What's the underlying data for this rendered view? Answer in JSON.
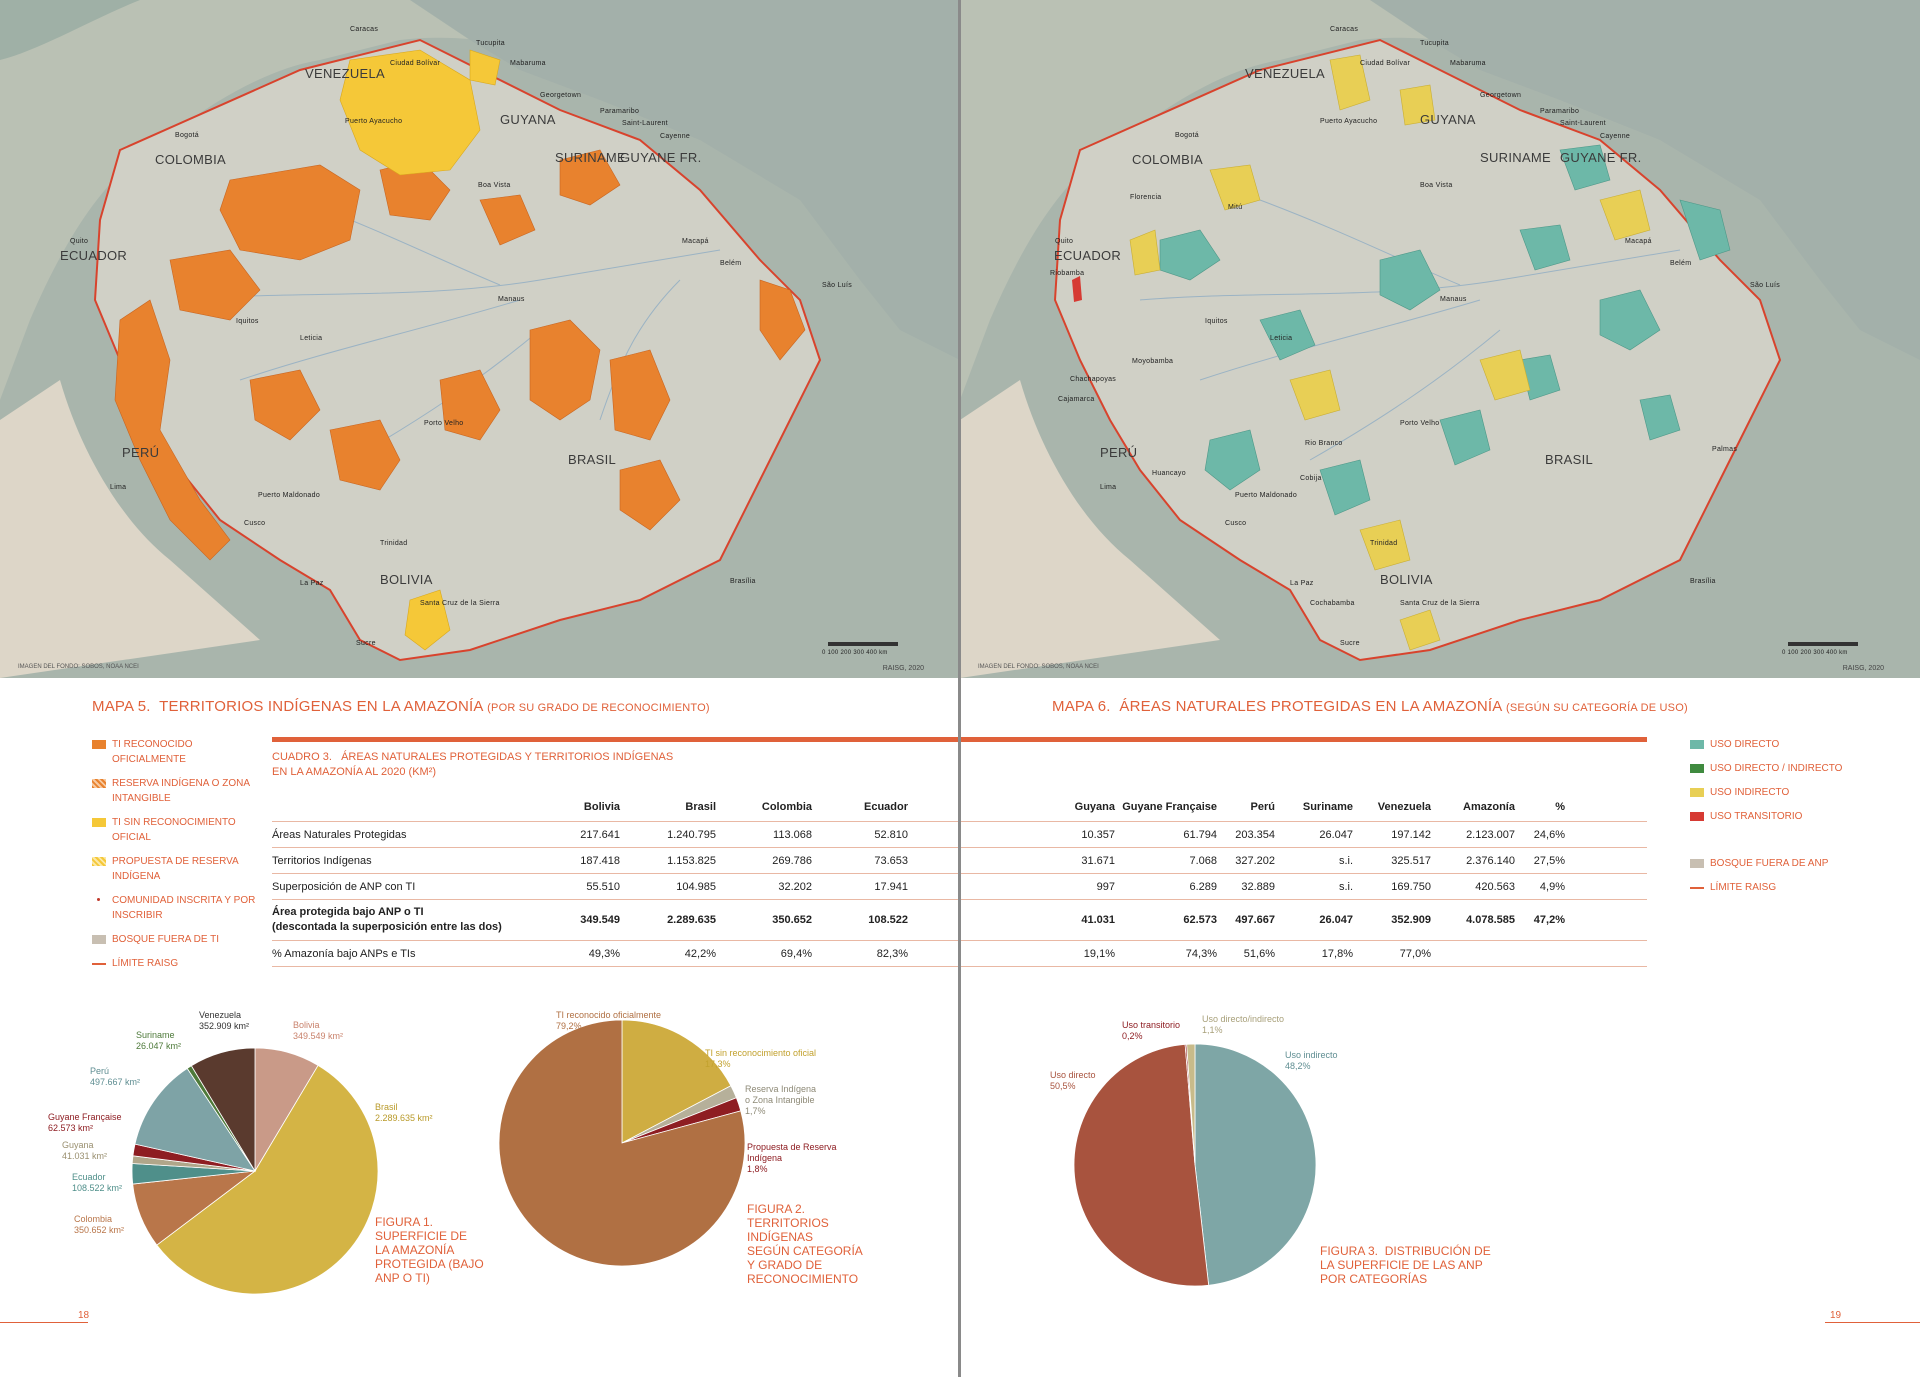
{
  "left_page": {
    "map": {
      "credit": "IMAGEN DEL FONDO: SOBOS, NOAA NCEI",
      "raisg_credit": "RAISG, 2020",
      "scale": "0  100  200  300  400 km",
      "countries": [
        "VENEZUELA",
        "COLOMBIA",
        "GUYANA",
        "SURINAME",
        "GUYANE FR.",
        "ECUADOR",
        "PERÚ",
        "BRASIL",
        "BOLIVIA"
      ],
      "cities": [
        "Caracas",
        "Ciudad Bolívar",
        "Tucupita",
        "Mabaruma",
        "Georgetown",
        "Paramaribo",
        "Saint-Laurent",
        "Cayenne",
        "Bogotá",
        "Puerto Ayacucho",
        "Boa Vista",
        "Macapá",
        "Belém",
        "São Luís",
        "Manaus",
        "Quito",
        "Iquitos",
        "Leticia",
        "Porto Velho",
        "Lima",
        "Puerto Maldonado",
        "Cusco",
        "Trinidad",
        "La Paz",
        "Santa Cruz de la Sierra",
        "Sucre",
        "Brasília"
      ]
    },
    "title": {
      "num": "MAPA 5.",
      "text": "TERRITORIOS INDÍGENAS EN LA AMAZONÍA",
      "sub": "(POR SU GRADO DE RECONOCIMIENTO)"
    },
    "legend": [
      {
        "label": "TI RECONOCIDO OFICIALMENTE",
        "color": "#e8822e"
      },
      {
        "label": "RESERVA INDÍGENA O ZONA INTANGIBLE",
        "color": "#f29b5a"
      },
      {
        "label": "TI SIN RECONOCIMIENTO OFICIAL",
        "color": "#f5c838"
      },
      {
        "label": "PROPUESTA DE RESERVA INDÍGENA",
        "color": "#f7d87a"
      },
      {
        "label": "COMUNIDAD INSCRITA Y POR INSCRIBIR",
        "color": "#c0392b"
      },
      {
        "label": "BOSQUE FUERA DE TI",
        "color": "#c8bfb2"
      },
      {
        "label": "LÍMITE RAISG",
        "color": "#e0613a"
      }
    ],
    "folio": "18"
  },
  "right_page": {
    "map": {
      "credit": "IMAGEN DEL FONDO: SOBOS, NOAA NCEI",
      "raisg_credit": "RAISG, 2020",
      "scale": "0  100  200  300  400 km",
      "countries": [
        "VENEZUELA",
        "COLOMBIA",
        "GUYANA",
        "SURINAME",
        "GUYANE FR.",
        "ECUADOR",
        "PERÚ",
        "BRASIL",
        "BOLIVIA"
      ],
      "cities": [
        "Caracas",
        "Ciudad Bolívar",
        "Tucupita",
        "Mabaruma",
        "Georgetown",
        "Paramaribo",
        "Saint-Laurent",
        "Cayenne",
        "Bogotá",
        "Puerto Ayacucho",
        "Boa Vista",
        "Macapá",
        "Belém",
        "São Luís",
        "Manaus",
        "Quito",
        "Iquitos",
        "Leticia",
        "Porto Velho",
        "Lima",
        "Puerto Maldonado",
        "Cusco",
        "Trinidad",
        "La Paz",
        "Santa Cruz de la Sierra",
        "Sucre",
        "Brasília",
        "Palmas",
        "Riobamba",
        "Moyobamba",
        "Cajamarca",
        "Rio Branco",
        "Chachapoyas",
        "Mitú",
        "Florencia",
        "Huancayo",
        "Cobija",
        "Cochabamba"
      ]
    },
    "title": {
      "num": "MAPA 6.",
      "text": "ÁREAS NATURALES PROTEGIDAS EN LA AMAZONÍA",
      "sub": "(SEGÚN SU CATEGORÍA DE USO)"
    },
    "legend": [
      {
        "label": "USO DIRECTO",
        "color": "#6db8a8"
      },
      {
        "label": "USO DIRECTO / INDIRECTO",
        "color": "#3f8a3f"
      },
      {
        "label": "USO INDIRECTO",
        "color": "#e8cf55"
      },
      {
        "label": "USO TRANSITORIO",
        "color": "#d63a33"
      },
      {
        "label": "BOSQUE FUERA DE ANP",
        "color": "#c8bfb2"
      },
      {
        "label": "LÍMITE RAISG",
        "color": "#e0613a"
      }
    ],
    "folio": "19"
  },
  "table": {
    "title_num": "CUADRO 3.",
    "title_text": "ÁREAS NATURALES PROTEGIDAS Y TERRITORIOS INDÍGENAS",
    "title_text2": "EN LA AMAZONÍA AL 2020 (KM²)",
    "left_headers": [
      "Bolivia",
      "Brasil",
      "Colombia",
      "Ecuador"
    ],
    "right_headers": [
      "Guyana",
      "Guyane Française",
      "Perú",
      "Suriname",
      "Venezuela",
      "Amazonía",
      "%"
    ],
    "rows": [
      {
        "label": "Áreas Naturales Protegidas",
        "left": [
          "217.641",
          "1.240.795",
          "113.068",
          "52.810"
        ],
        "right": [
          "10.357",
          "61.794",
          "203.354",
          "26.047",
          "197.142",
          "2.123.007",
          "24,6%"
        ]
      },
      {
        "label": "Territorios Indígenas",
        "left": [
          "187.418",
          "1.153.825",
          "269.786",
          "73.653"
        ],
        "right": [
          "31.671",
          "7.068",
          "327.202",
          "s.i.",
          "325.517",
          "2.376.140",
          "27,5%"
        ]
      },
      {
        "label": "Superposición de ANP con TI",
        "left": [
          "55.510",
          "104.985",
          "32.202",
          "17.941"
        ],
        "right": [
          "997",
          "6.289",
          "32.889",
          "s.i.",
          "169.750",
          "420.563",
          "4,9%"
        ]
      },
      {
        "label": "Área  protegida bajo ANP o TI",
        "label2": "(descontada la superposición entre las dos)",
        "left": [
          "349.549",
          "2.289.635",
          "350.652",
          "108.522"
        ],
        "right": [
          "41.031",
          "62.573",
          "497.667",
          "26.047",
          "352.909",
          "4.078.585",
          "47,2%"
        ]
      },
      {
        "label": "% Amazonía bajo ANPs e TIs",
        "left": [
          "49,3%",
          "42,2%",
          "69,4%",
          "82,3%"
        ],
        "right": [
          "19,1%",
          "74,3%",
          "51,6%",
          "17,8%",
          "77,0%",
          "",
          ""
        ]
      }
    ]
  },
  "chart_data": [
    {
      "type": "pie",
      "title": "FIGURA 1. SUPERFICIE DE LA AMAZONÍA PROTEGIDA (BAJO ANP O TI)",
      "caption_num": "FIGURA 1.",
      "caption_lines": [
        "SUPERFICIE DE",
        "LA AMAZONÍA",
        "PROTEGIDA (BAJO",
        "ANP O TI)"
      ],
      "slices": [
        {
          "name": "Bolivia",
          "value": 349549,
          "label": "349.549 km²",
          "color": "#c99a88"
        },
        {
          "name": "Brasil",
          "value": 2289635,
          "label": "2.289.635 km²",
          "color": "#d4b445"
        },
        {
          "name": "Colombia",
          "value": 350652,
          "label": "350.652 km²",
          "color": "#b9764a"
        },
        {
          "name": "Ecuador",
          "value": 108522,
          "label": "108.522 km²",
          "color": "#4f8f8a"
        },
        {
          "name": "Guyana",
          "value": 41031,
          "label": "41.031 km²",
          "color": "#b0a68a"
        },
        {
          "name": "Guyane Française",
          "value": 62573,
          "label": "62.573 km²",
          "color": "#8e1d22"
        },
        {
          "name": "Perú",
          "value": 497667,
          "label": "497.667 km²",
          "color": "#7ea3a6"
        },
        {
          "name": "Suriname",
          "value": 26047,
          "label": "26.047 km²",
          "color": "#4e7a3a"
        },
        {
          "name": "Venezuela",
          "value": 352909,
          "label": "352.909 km²",
          "color": "#5a3a2e"
        }
      ]
    },
    {
      "type": "pie",
      "title": "FIGURA 2. TERRITORIOS INDÍGENAS SEGÚN CATEGORÍA Y GRADO DE RECONOCIMIENTO",
      "caption_num": "FIGURA 2.",
      "caption_lines": [
        "TERRITORIOS",
        "INDÍGENAS",
        "SEGÚN CATEGORÍA",
        "Y GRADO DE",
        "RECONOCIMIENTO"
      ],
      "slices": [
        {
          "name": "TI reconocido oficialmente",
          "value": 79.2,
          "label": "79,2%",
          "color": "#b07043"
        },
        {
          "name": "TI sin reconocimiento oficial",
          "value": 17.3,
          "label": "17,3%",
          "color": "#cfad42"
        },
        {
          "name": "Reserva Indígena o Zona Intangible",
          "value": 1.7,
          "label": "1,7%",
          "color": "#b6b09a"
        },
        {
          "name": "Propuesta de Reserva Indígena",
          "value": 1.8,
          "label": "1,8%",
          "color": "#8e1d22"
        }
      ]
    },
    {
      "type": "pie",
      "title": "FIGURA 3. DISTRIBUCIÓN DE LA SUPERFICIE DE LAS ANP POR CATEGORÍAS",
      "caption_num": "FIGURA 3.",
      "caption_lines": [
        "DISTRIBUCIÓN DE",
        "LA SUPERFICIE DE LAS ANP",
        "POR CATEGORÍAS"
      ],
      "slices": [
        {
          "name": "Uso indirecto",
          "value": 48.2,
          "label": "48,2%",
          "color": "#7ea6a6"
        },
        {
          "name": "Uso directo",
          "value": 50.5,
          "label": "50,5%",
          "color": "#a8533e"
        },
        {
          "name": "Uso transitorio",
          "value": 0.2,
          "label": "0,2%",
          "color": "#8e1d22"
        },
        {
          "name": "Uso directo/indirecto",
          "value": 1.1,
          "label": "1,1%",
          "color": "#c8bb8a"
        }
      ]
    }
  ]
}
